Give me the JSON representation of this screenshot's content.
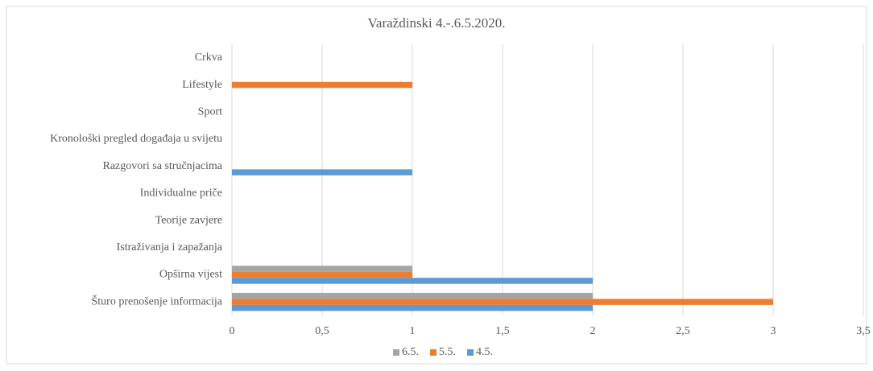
{
  "chart_data": {
    "type": "bar",
    "orientation": "horizontal",
    "title": "Varaždinski 4.-.6.5.2020.",
    "categories": [
      "Crkva",
      "Lifestyle",
      "Sport",
      "Kronološki pregled događaja u svijetu",
      "Razgovori sa stručnjacima",
      "Individualne priče",
      "Teorije zavjere",
      "Istraživanja i zapažanja",
      "Opširna vijest",
      "Šturo prenošenje informacija"
    ],
    "series": [
      {
        "name": "6.5.",
        "color": "#a5a5a5",
        "values": [
          0,
          0,
          0,
          0,
          0,
          0,
          0,
          0,
          1,
          2
        ]
      },
      {
        "name": "5.5.",
        "color": "#ed7d31",
        "values": [
          0,
          1,
          0,
          0,
          0,
          0,
          0,
          0,
          1,
          3
        ]
      },
      {
        "name": "4.5.",
        "color": "#5b9bd5",
        "values": [
          0,
          0,
          0,
          0,
          1,
          0,
          0,
          0,
          2,
          2
        ]
      }
    ],
    "xlim": [
      0,
      3.5
    ],
    "xticks": [
      0,
      {
        "value": 0.5,
        "label": "0,5"
      },
      1,
      {
        "value": 1.5,
        "label": "1,5"
      },
      2,
      {
        "value": 2.5,
        "label": "2,5"
      },
      3,
      {
        "value": 3.5,
        "label": "3,5"
      }
    ],
    "grid": true,
    "legend": "bottom"
  }
}
